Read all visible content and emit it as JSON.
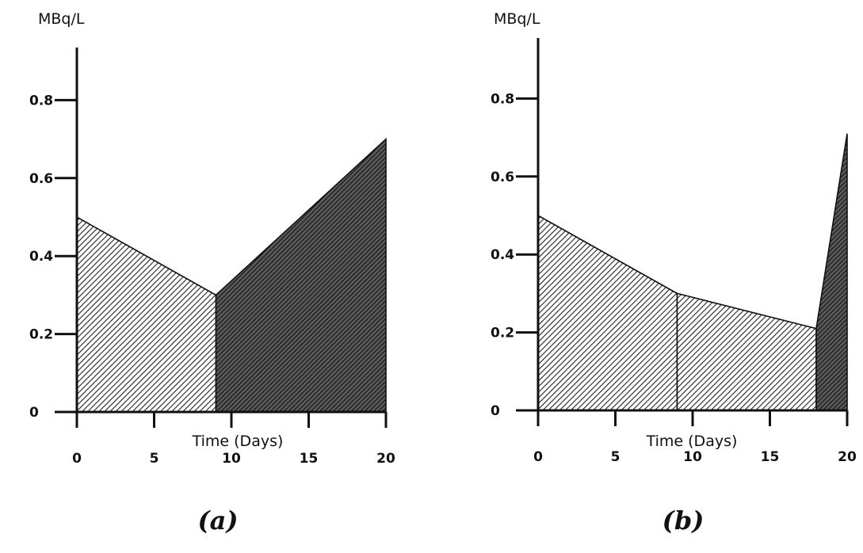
{
  "chart_data": [
    {
      "type": "area",
      "panel_label": "(a)",
      "ylabel": "MBq/L",
      "xlabel": "Time (Days)",
      "xlim": [
        0,
        20
      ],
      "ylim": [
        0,
        0.9
      ],
      "x_ticks": [
        0,
        5,
        10,
        15,
        20
      ],
      "x_tick_labels": [
        "0",
        "5",
        "10",
        "15",
        "20"
      ],
      "y_ticks": [
        0,
        0.2,
        0.4,
        0.6,
        0.8
      ],
      "y_tick_labels": [
        "0",
        "0.2",
        "0.4",
        "0.6",
        "0.8"
      ],
      "grid": false,
      "segments": [
        {
          "x": [
            0,
            9
          ],
          "y": [
            0.5,
            0.3
          ],
          "fill": "light-hatch"
        },
        {
          "x": [
            9,
            20
          ],
          "y": [
            0.3,
            0.7
          ],
          "fill": "dense-hatch"
        }
      ]
    },
    {
      "type": "area",
      "panel_label": "(b)",
      "ylabel": "MBq/L",
      "xlabel": "Time (Days)",
      "xlim": [
        0,
        20
      ],
      "ylim": [
        0,
        0.9
      ],
      "x_ticks": [
        0,
        5,
        10,
        15,
        20
      ],
      "x_tick_labels": [
        "0",
        "5",
        "10",
        "15",
        "20"
      ],
      "y_ticks": [
        0,
        0.2,
        0.4,
        0.6,
        0.8
      ],
      "y_tick_labels": [
        "0",
        "0.2",
        "0.4",
        "0.6",
        "0.8"
      ],
      "grid": false,
      "segments": [
        {
          "x": [
            0,
            9
          ],
          "y": [
            0.5,
            0.3
          ],
          "fill": "light-hatch"
        },
        {
          "x": [
            9,
            18
          ],
          "y": [
            0.3,
            0.21
          ],
          "fill": "light-hatch"
        },
        {
          "x": [
            18,
            20
          ],
          "y": [
            0.21,
            0.71
          ],
          "fill": "dense-hatch"
        }
      ]
    }
  ]
}
